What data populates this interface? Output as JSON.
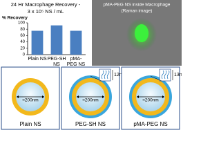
{
  "chart_data": {
    "type": "bar",
    "title": "24 Hr Macrophage Recovery -",
    "subtitle": "3 x 10⁵ NS / mL",
    "y_label": "% Recovery",
    "categories": [
      "Plain NS",
      "PEG-SH NS",
      "pMA-PEG NS"
    ],
    "values": [
      75,
      92,
      75
    ],
    "color": "#4a7fc1",
    "ylim": [
      0,
      100
    ],
    "yticks": [
      0,
      20,
      40,
      60,
      80,
      100
    ]
  },
  "image": {
    "caption": "pMA-PEG NS inside Macrophage",
    "note": "(Raman image)"
  },
  "panels": [
    {
      "label": "Plain NS",
      "size": "≈200nm"
    },
    {
      "label": "PEG-SH NS",
      "size": "≈200nm",
      "coating": "12nm"
    },
    {
      "label": "pMA-PEG NS",
      "size": "≈200nm",
      "coating": "13nm"
    }
  ]
}
